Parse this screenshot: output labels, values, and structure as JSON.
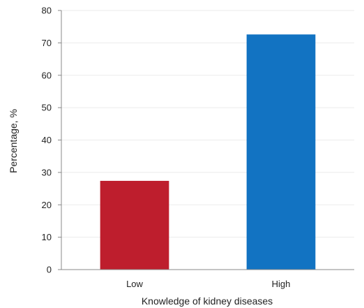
{
  "chart_data": {
    "type": "bar",
    "title": "",
    "xlabel": "Knowledge of kidney diseases",
    "ylabel": "Percentage, %",
    "categories": [
      "Low",
      "High"
    ],
    "values": [
      27.4,
      72.6
    ],
    "bar_colors": [
      "#be1e2d",
      "#1273c2"
    ],
    "ylim": [
      0,
      80
    ],
    "yticks": [
      0,
      10,
      20,
      30,
      40,
      50,
      60,
      70,
      80
    ],
    "grid": true,
    "legend": false
  }
}
